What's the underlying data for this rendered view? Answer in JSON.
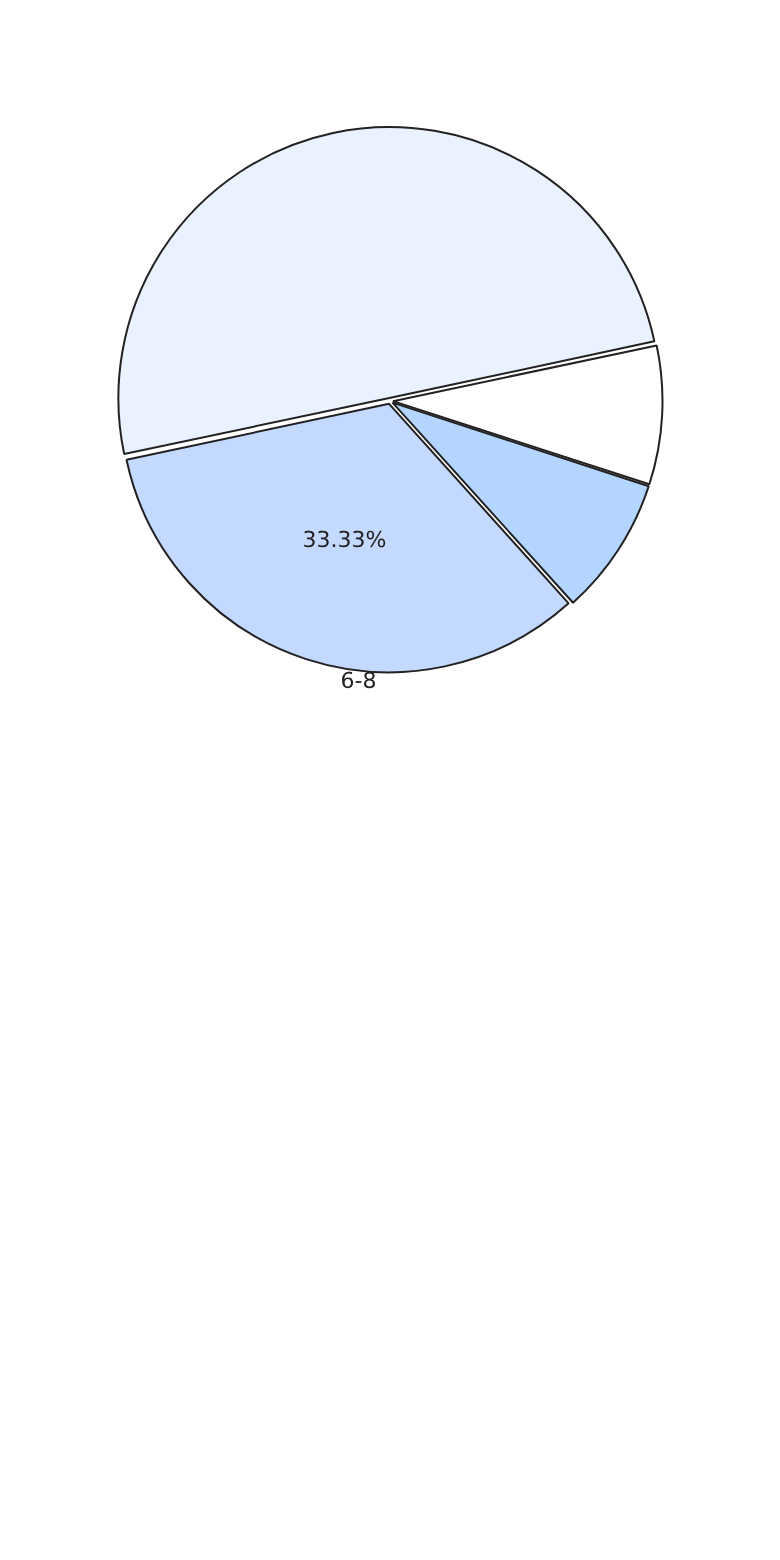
{
  "chart_data": {
    "type": "pie",
    "categories": [
      null,
      null,
      null,
      "6-8"
    ],
    "values": [
      50,
      8.33,
      8.33,
      33.33
    ],
    "colors": [
      "#eaf2ff",
      "#ffffff",
      "#b3d5ff",
      "#c4d9ff"
    ],
    "value_labels": [
      null,
      null,
      null,
      "33.33%"
    ],
    "legend": false
  }
}
